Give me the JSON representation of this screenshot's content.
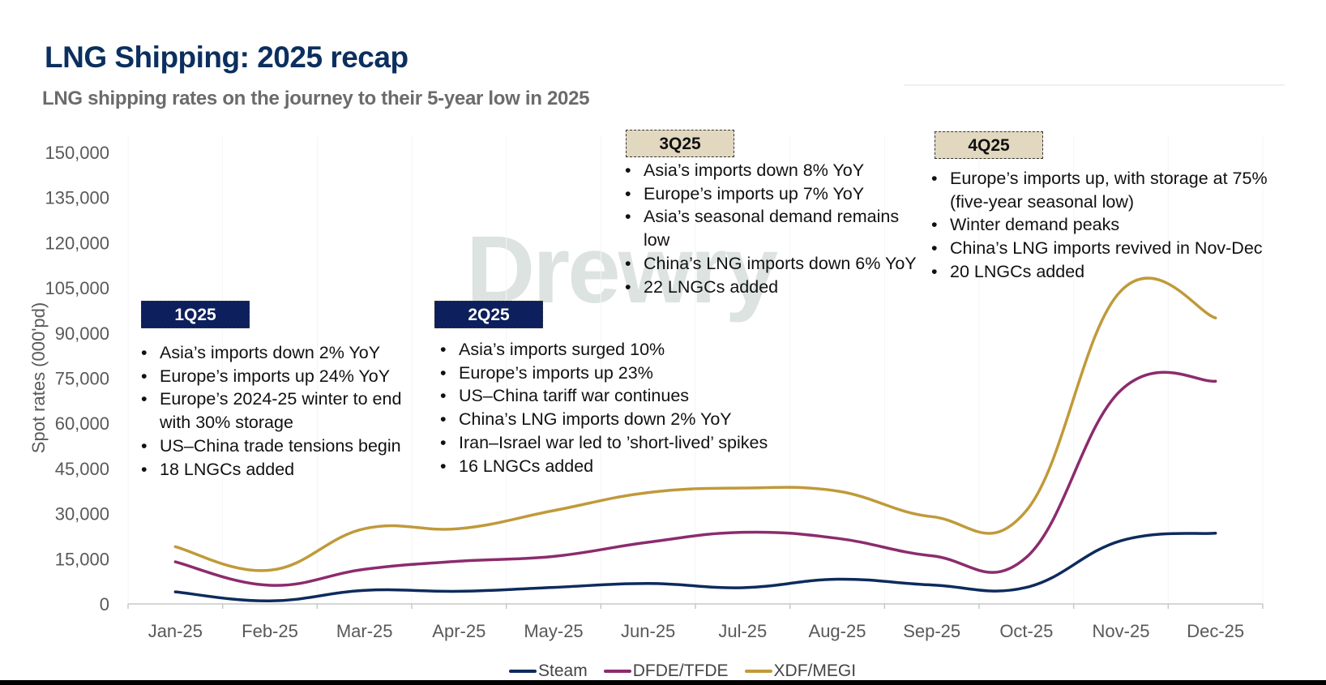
{
  "title": "LNG Shipping: 2025 recap",
  "subtitle": "LNG shipping rates on the journey to their 5-year low in 2025",
  "watermark": "Drewry",
  "annotations": [
    {
      "quarter": "1Q25",
      "style": "dark",
      "bullets": [
        "Asia’s imports down 2% YoY",
        "Europe’s imports up 24% YoY",
        "Europe’s 2024-25 winter to end with 30% storage",
        "US–China trade tensions begin",
        "18 LNGCs added"
      ]
    },
    {
      "quarter": "2Q25",
      "style": "dark",
      "bullets": [
        "Asia’s imports surged 10%",
        "Europe’s imports up 23%",
        "US–China tariff war continues",
        "China’s LNG imports down 2% YoY",
        "Iran–Israel war led to ’short-lived’ spikes",
        "16 LNGCs added"
      ]
    },
    {
      "quarter": "3Q25",
      "style": "light",
      "bullets": [
        "Asia’s imports down 8% YoY",
        "Europe’s imports up 7% YoY",
        "Asia’s seasonal demand remains low",
        "China’s LNG imports down 6% YoY",
        "22 LNGCs added"
      ]
    },
    {
      "quarter": "4Q25",
      "style": "light",
      "bullets": [
        "Europe’s imports up, with storage at 75% (five-year seasonal low)",
        "Winter demand peaks",
        "China’s LNG imports revived in Nov-Dec",
        "20 LNGCs added"
      ]
    }
  ],
  "chart_data": {
    "type": "line",
    "title": "LNG shipping rates on the journey to their 5-year low in 2025",
    "xlabel": "",
    "ylabel": "Spot rates (000'pd)",
    "ylim": [
      0,
      150000
    ],
    "yticks": [
      0,
      15000,
      30000,
      45000,
      60000,
      75000,
      90000,
      105000,
      120000,
      135000,
      150000
    ],
    "ytick_labels": [
      "0",
      "15,000",
      "30,000",
      "45,000",
      "60,000",
      "75,000",
      "90,000",
      "105,000",
      "120,000",
      "135,000",
      "150,000"
    ],
    "categories": [
      "Jan-25",
      "Feb-25",
      "Mar-25",
      "Apr-25",
      "May-25",
      "Jun-25",
      "Jul-25",
      "Aug-25",
      "Sep-25",
      "Oct-25",
      "Nov-25",
      "Dec-25"
    ],
    "legend_position": "bottom",
    "series": [
      {
        "name": "Steam",
        "color": "#0d2b5c",
        "values": [
          4000,
          1000,
          4500,
          4200,
          5500,
          6800,
          5400,
          8200,
          6300,
          5500,
          21000,
          23500
        ]
      },
      {
        "name": "DFDE/TFDE",
        "color": "#8c2b6e",
        "values": [
          14000,
          6200,
          11500,
          14200,
          15800,
          20500,
          23800,
          21800,
          16000,
          15500,
          71000,
          74000
        ]
      },
      {
        "name": "XDF/MEGI",
        "color": "#c09a3a",
        "values": [
          19000,
          11200,
          25000,
          25000,
          31000,
          37000,
          38500,
          37500,
          29000,
          31000,
          104000,
          95000
        ]
      }
    ]
  }
}
